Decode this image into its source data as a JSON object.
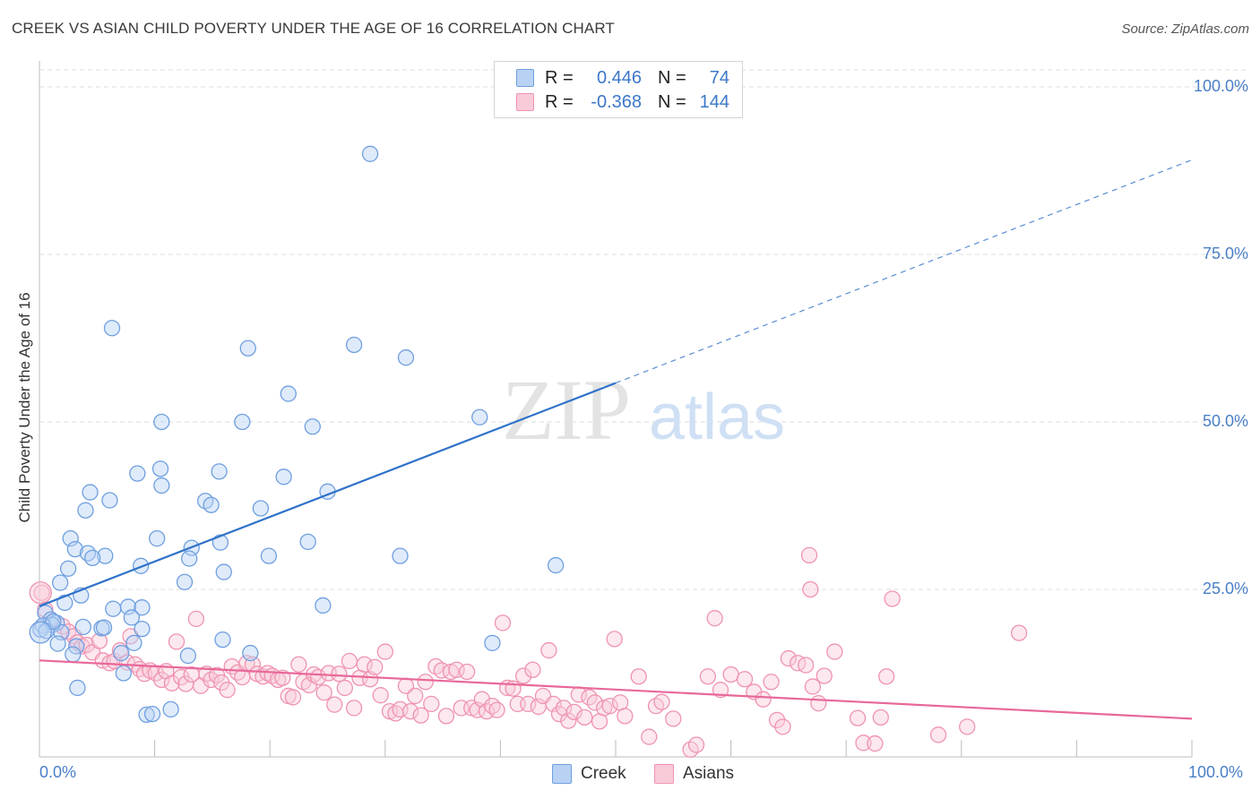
{
  "title": "CREEK VS ASIAN CHILD POVERTY UNDER THE AGE OF 16 CORRELATION CHART",
  "source": "Source: ZipAtlas.com",
  "watermark": {
    "zip": "ZIP",
    "atlas": "atlas"
  },
  "legend": {
    "rows": [
      {
        "r_label": "R =",
        "r_value": "0.446",
        "n_label": "N =",
        "n_value": "74",
        "color": "#6f9fe0",
        "fill": "#b9d2f3"
      },
      {
        "r_label": "R =",
        "r_value": "-0.368",
        "n_label": "N =",
        "n_value": "144",
        "color": "#ef93b1",
        "fill": "#f9cbd9"
      }
    ]
  },
  "bottom_legend": [
    "Creek",
    "Asians"
  ],
  "chart_data": {
    "type": "scatter",
    "title": "CREEK VS ASIAN CHILD POVERTY UNDER THE AGE OF 16 CORRELATION CHART",
    "xlabel": "",
    "ylabel": "Child Poverty Under the Age of 16",
    "xlim": [
      0,
      100
    ],
    "ylim": [
      0,
      105
    ],
    "x_tick_labels": [
      "0.0%",
      "100.0%"
    ],
    "y_tick_labels": [
      "100.0%",
      "75.0%",
      "50.0%",
      "25.0%"
    ],
    "y_ticks": [
      100,
      75,
      50,
      25
    ],
    "grid": "horizontal-dashed",
    "legend_position": "top-center",
    "colors": {
      "creek_stroke": "#6f9fe0",
      "creek_fill": "#b9d2f3",
      "creek_line": "#2f72c8",
      "asians_stroke": "#ef93b1",
      "asians_fill": "#f9cbd9",
      "asians_line": "#e8689a"
    },
    "series": [
      {
        "name": "Creek",
        "trend": {
          "x0": 0,
          "y0": 22.5,
          "x1": 50,
          "y1": 55.8,
          "dashed_to_x": 100,
          "dashed_to_y": 89.1
        },
        "points": [
          [
            28.7,
            90
          ],
          [
            6.3,
            64
          ],
          [
            18.1,
            61
          ],
          [
            27.3,
            61.5
          ],
          [
            31.8,
            59.6
          ],
          [
            21.6,
            54.2
          ],
          [
            10.6,
            50
          ],
          [
            17.6,
            50
          ],
          [
            23.7,
            49.3
          ],
          [
            38.2,
            50.7
          ],
          [
            8.5,
            42.3
          ],
          [
            10.5,
            43
          ],
          [
            15.6,
            42.6
          ],
          [
            21.2,
            41.8
          ],
          [
            10.6,
            40.5
          ],
          [
            4.4,
            39.5
          ],
          [
            6.1,
            38.3
          ],
          [
            14.4,
            38.2
          ],
          [
            14.9,
            37.6
          ],
          [
            25.0,
            39.6
          ],
          [
            19.2,
            37.1
          ],
          [
            4.0,
            36.8
          ],
          [
            2.7,
            32.6
          ],
          [
            10.2,
            32.6
          ],
          [
            15.7,
            32.0
          ],
          [
            23.3,
            32.1
          ],
          [
            3.1,
            31.0
          ],
          [
            4.2,
            30.4
          ],
          [
            5.7,
            30.0
          ],
          [
            4.6,
            29.7
          ],
          [
            13.2,
            31.2
          ],
          [
            19.9,
            30.0
          ],
          [
            31.3,
            30.0
          ],
          [
            13.0,
            29.6
          ],
          [
            8.8,
            28.5
          ],
          [
            16.0,
            27.6
          ],
          [
            2.5,
            28.1
          ],
          [
            44.8,
            28.6
          ],
          [
            1.8,
            26.0
          ],
          [
            12.6,
            26.1
          ],
          [
            3.6,
            24.1
          ],
          [
            2.2,
            23.0
          ],
          [
            24.6,
            22.6
          ],
          [
            6.4,
            22.1
          ],
          [
            7.7,
            22.4
          ],
          [
            8.9,
            22.3
          ],
          [
            0.5,
            21.5
          ],
          [
            8.0,
            20.8
          ],
          [
            1.0,
            20.5
          ],
          [
            1.5,
            20.0
          ],
          [
            1.1,
            19.7
          ],
          [
            0.3,
            19.6
          ],
          [
            0.1,
            19.0
          ],
          [
            3.8,
            19.4
          ],
          [
            5.4,
            19.2
          ],
          [
            5.6,
            19.3
          ],
          [
            8.9,
            19.1
          ],
          [
            1.9,
            18.6
          ],
          [
            15.9,
            17.5
          ],
          [
            8.2,
            17.0
          ],
          [
            1.6,
            16.9
          ],
          [
            39.3,
            17.0
          ],
          [
            3.2,
            16.5
          ],
          [
            7.1,
            15.5
          ],
          [
            2.9,
            15.3
          ],
          [
            12.9,
            15.1
          ],
          [
            18.3,
            15.5
          ],
          [
            7.3,
            12.5
          ],
          [
            3.3,
            10.3
          ],
          [
            11.4,
            7.1
          ],
          [
            9.3,
            6.3
          ],
          [
            9.8,
            6.4
          ],
          [
            0.6,
            18.8
          ],
          [
            1.2,
            20.2
          ]
        ]
      },
      {
        "name": "Asians",
        "trend": {
          "x0": 0,
          "y0": 14.4,
          "x1": 100,
          "y1": 5.7
        },
        "points": [
          [
            0.2,
            24.5
          ],
          [
            0.5,
            22.0
          ],
          [
            2.0,
            19.5
          ],
          [
            2.5,
            18.7
          ],
          [
            3.0,
            18.0
          ],
          [
            3.3,
            17.1
          ],
          [
            3.7,
            16.5
          ],
          [
            4.1,
            16.7
          ],
          [
            4.6,
            15.6
          ],
          [
            5.2,
            17.3
          ],
          [
            5.5,
            14.4
          ],
          [
            6.1,
            14.0
          ],
          [
            6.5,
            14.3
          ],
          [
            7.0,
            15.9
          ],
          [
            7.6,
            14.1
          ],
          [
            7.9,
            18.0
          ],
          [
            8.3,
            13.8
          ],
          [
            8.7,
            13.1
          ],
          [
            9.1,
            12.4
          ],
          [
            9.6,
            12.9
          ],
          [
            10.1,
            12.5
          ],
          [
            10.6,
            11.5
          ],
          [
            11.0,
            12.8
          ],
          [
            11.5,
            11.0
          ],
          [
            11.9,
            17.2
          ],
          [
            12.3,
            11.9
          ],
          [
            12.7,
            10.9
          ],
          [
            13.2,
            12.3
          ],
          [
            13.6,
            20.6
          ],
          [
            14.0,
            10.6
          ],
          [
            14.5,
            12.4
          ],
          [
            14.9,
            11.5
          ],
          [
            15.4,
            12.2
          ],
          [
            15.8,
            11.1
          ],
          [
            16.3,
            10.0
          ],
          [
            16.7,
            13.5
          ],
          [
            17.2,
            12.6
          ],
          [
            17.6,
            11.9
          ],
          [
            18.0,
            14.0
          ],
          [
            18.5,
            13.8
          ],
          [
            18.9,
            12.4
          ],
          [
            19.4,
            12.0
          ],
          [
            19.8,
            12.5
          ],
          [
            20.2,
            12.1
          ],
          [
            20.7,
            11.5
          ],
          [
            21.1,
            11.8
          ],
          [
            21.6,
            9.1
          ],
          [
            22.0,
            8.9
          ],
          [
            22.5,
            13.8
          ],
          [
            22.9,
            11.2
          ],
          [
            23.4,
            10.7
          ],
          [
            23.8,
            12.3
          ],
          [
            24.2,
            11.9
          ],
          [
            24.7,
            9.6
          ],
          [
            25.1,
            12.5
          ],
          [
            25.6,
            7.8
          ],
          [
            26.0,
            12.4
          ],
          [
            26.5,
            10.3
          ],
          [
            26.9,
            14.3
          ],
          [
            27.3,
            7.3
          ],
          [
            27.8,
            11.8
          ],
          [
            28.2,
            13.8
          ],
          [
            28.7,
            11.6
          ],
          [
            29.1,
            13.4
          ],
          [
            29.6,
            9.2
          ],
          [
            30.0,
            15.7
          ],
          [
            30.4,
            6.8
          ],
          [
            30.9,
            6.5
          ],
          [
            31.3,
            7.1
          ],
          [
            31.8,
            10.6
          ],
          [
            32.2,
            6.8
          ],
          [
            32.6,
            9.1
          ],
          [
            33.1,
            6.2
          ],
          [
            33.5,
            11.2
          ],
          [
            34.0,
            7.9
          ],
          [
            34.4,
            13.5
          ],
          [
            34.9,
            12.9
          ],
          [
            35.3,
            6.1
          ],
          [
            35.7,
            12.7
          ],
          [
            36.2,
            13.0
          ],
          [
            36.6,
            7.3
          ],
          [
            37.1,
            12.7
          ],
          [
            37.5,
            7.3
          ],
          [
            38.0,
            7.0
          ],
          [
            38.4,
            8.6
          ],
          [
            38.8,
            6.8
          ],
          [
            39.3,
            7.6
          ],
          [
            39.7,
            7.0
          ],
          [
            40.2,
            20.0
          ],
          [
            40.6,
            10.3
          ],
          [
            41.1,
            10.2
          ],
          [
            41.5,
            7.9
          ],
          [
            42.0,
            12.1
          ],
          [
            42.4,
            7.9
          ],
          [
            42.8,
            13.0
          ],
          [
            43.3,
            7.5
          ],
          [
            43.7,
            9.1
          ],
          [
            44.2,
            15.9
          ],
          [
            44.6,
            7.9
          ],
          [
            45.1,
            6.4
          ],
          [
            45.5,
            7.3
          ],
          [
            45.9,
            5.4
          ],
          [
            46.4,
            6.7
          ],
          [
            46.8,
            9.3
          ],
          [
            47.3,
            5.9
          ],
          [
            47.7,
            8.9
          ],
          [
            48.2,
            8.1
          ],
          [
            48.6,
            5.3
          ],
          [
            49.0,
            7.3
          ],
          [
            49.5,
            7.6
          ],
          [
            49.9,
            17.6
          ],
          [
            50.4,
            8.1
          ],
          [
            50.8,
            6.1
          ],
          [
            52.0,
            12.0
          ],
          [
            52.9,
            3.0
          ],
          [
            53.5,
            7.6
          ],
          [
            54.0,
            8.2
          ],
          [
            55.0,
            5.7
          ],
          [
            56.5,
            1.1
          ],
          [
            57.0,
            1.8
          ],
          [
            58.0,
            12.0
          ],
          [
            58.6,
            20.7
          ],
          [
            59.1,
            10.0
          ],
          [
            60.0,
            12.3
          ],
          [
            61.2,
            11.6
          ],
          [
            62.0,
            9.7
          ],
          [
            62.8,
            8.6
          ],
          [
            63.5,
            11.2
          ],
          [
            64.0,
            5.5
          ],
          [
            64.5,
            4.5
          ],
          [
            65.0,
            14.7
          ],
          [
            65.8,
            14.0
          ],
          [
            66.5,
            13.7
          ],
          [
            67.1,
            10.5
          ],
          [
            67.6,
            8.0
          ],
          [
            68.1,
            12.1
          ],
          [
            66.8,
            30.1
          ],
          [
            66.9,
            25.0
          ],
          [
            69.0,
            15.7
          ],
          [
            71.0,
            5.8
          ],
          [
            71.5,
            2.1
          ],
          [
            72.5,
            2.0
          ],
          [
            73.0,
            5.9
          ],
          [
            73.5,
            12.0
          ],
          [
            74.0,
            23.6
          ],
          [
            78.0,
            3.3
          ],
          [
            80.5,
            4.5
          ],
          [
            85.0,
            18.5
          ]
        ]
      }
    ]
  }
}
